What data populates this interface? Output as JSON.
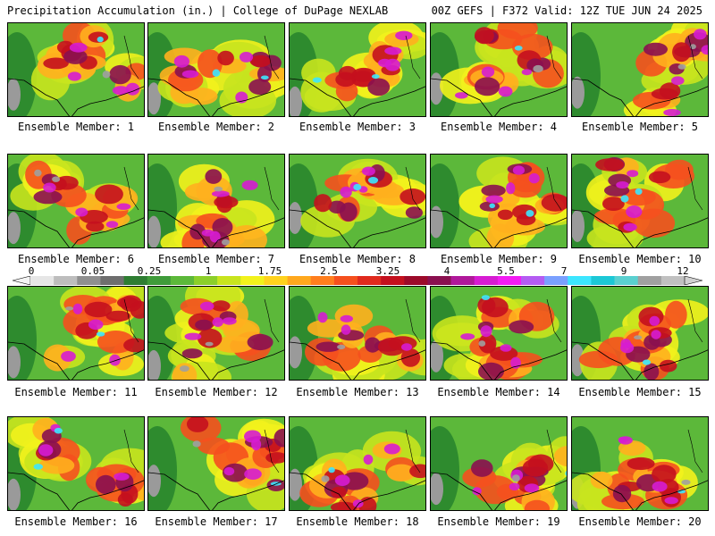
{
  "header": {
    "left": "Precipitation Accumulation (in.) | College of DuPage NEXLAB",
    "right": "00Z GEFS | F372 Valid: 12Z TUE JUN 24 2025"
  },
  "panels": [
    {
      "caption": "Ensemble Member: 1"
    },
    {
      "caption": "Ensemble Member: 2"
    },
    {
      "caption": "Ensemble Member: 3"
    },
    {
      "caption": "Ensemble Member: 4"
    },
    {
      "caption": "Ensemble Member: 5"
    },
    {
      "caption": "Ensemble Member: 6"
    },
    {
      "caption": "Ensemble Member: 7"
    },
    {
      "caption": "Ensemble Member: 8"
    },
    {
      "caption": "Ensemble Member: 9"
    },
    {
      "caption": "Ensemble Member: 10"
    },
    {
      "caption": "Ensemble Member: 11"
    },
    {
      "caption": "Ensemble Member: 12"
    },
    {
      "caption": "Ensemble Member: 13"
    },
    {
      "caption": "Ensemble Member: 14"
    },
    {
      "caption": "Ensemble Member: 15"
    },
    {
      "caption": "Ensemble Member: 16"
    },
    {
      "caption": "Ensemble Member: 17"
    },
    {
      "caption": "Ensemble Member: 18"
    },
    {
      "caption": "Ensemble Member: 19"
    },
    {
      "caption": "Ensemble Member: 20"
    }
  ],
  "colorbar": {
    "labels": [
      "0",
      "0.05",
      "0.25",
      "1",
      "1.75",
      "2.5",
      "3.25",
      "4",
      "5.5",
      "7",
      "9",
      "12"
    ],
    "colors": [
      "#e6e6e6",
      "#bdbdbd",
      "#8f8f8f",
      "#6e6e6e",
      "#2e7d32",
      "#3f9b3a",
      "#5cb83a",
      "#8ccf2a",
      "#c8e41e",
      "#f2f21c",
      "#ffd21e",
      "#ffa81e",
      "#ff7e1e",
      "#f5501e",
      "#e02a1e",
      "#c4101e",
      "#9c0a2a",
      "#8a1050",
      "#b0189a",
      "#d61cd2",
      "#f21cf2",
      "#b45cf2",
      "#7aa0ff",
      "#3ce6ff",
      "#1cc8d6",
      "#5ad0d0",
      "#a0a0a0",
      "#c0c0c0"
    ]
  }
}
